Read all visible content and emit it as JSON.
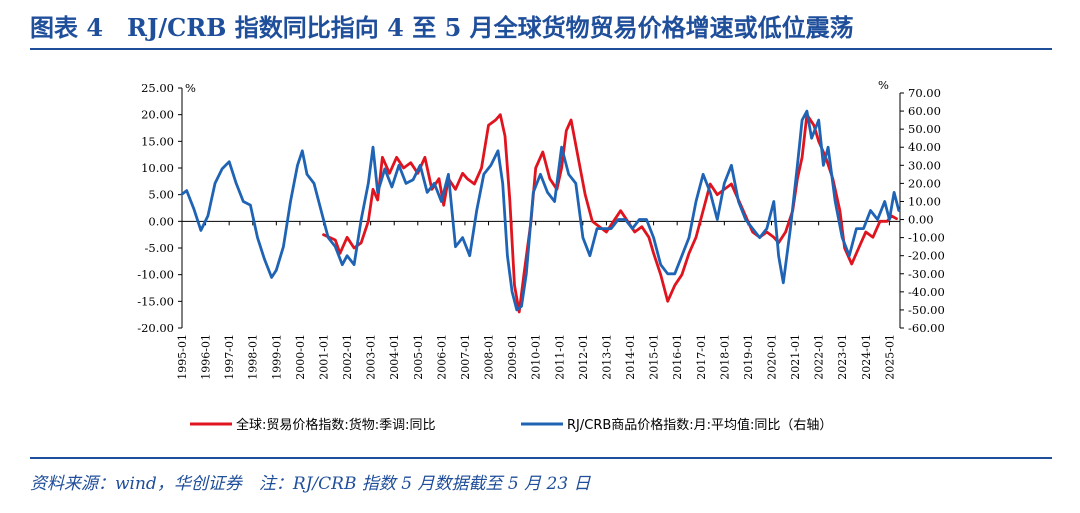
{
  "header": {
    "title": "图表 4　RJ/CRB 指数同比指向 4 至 5 月全球货物贸易价格增速或低位震荡"
  },
  "footer": {
    "source": "资料来源：wind，华创证券　注：RJ/CRB 指数 5 月数据截至 5 月 23 日"
  },
  "colors": {
    "series1": "#e0141e",
    "series2": "#1f64b4",
    "brand": "#1f4e9a"
  },
  "chart_data": {
    "type": "line",
    "left_axis": {
      "unit": "%",
      "ylim": [
        -20,
        25
      ],
      "ticks": [
        "25.00",
        "20.00",
        "15.00",
        "10.00",
        "5.00",
        "0.00",
        "-5.00",
        "-10.00",
        "-15.00",
        "-20.00"
      ]
    },
    "right_axis": {
      "unit": "%",
      "ylim": [
        -60,
        70
      ],
      "ticks": [
        "70.00",
        "60.00",
        "50.00",
        "40.00",
        "30.00",
        "20.00",
        "10.00",
        "0.00",
        "-10.00",
        "-20.00",
        "-30.00",
        "-40.00",
        "-50.00",
        "-60.00"
      ]
    },
    "x_ticks": [
      "1995-01",
      "1996-01",
      "1997-01",
      "1998-01",
      "1999-01",
      "2000-01",
      "2001-01",
      "2002-01",
      "2003-01",
      "2004-01",
      "2005-01",
      "2006-01",
      "2007-01",
      "2008-01",
      "2009-01",
      "2010-01",
      "2011-01",
      "2012-01",
      "2013-01",
      "2014-01",
      "2015-01",
      "2016-01",
      "2017-01",
      "2018-01",
      "2019-01",
      "2020-01",
      "2021-01",
      "2022-01",
      "2023-01",
      "2024-01",
      "2025-01"
    ],
    "grid": false,
    "legend_position": "bottom",
    "series": [
      {
        "name": "全球:贸易价格指数:货物:季调:同比",
        "axis": "left",
        "color": "#e0141e",
        "x": [
          2001.0,
          2001.5,
          2001.7,
          2002.0,
          2002.3,
          2002.6,
          2002.9,
          2003.1,
          2003.3,
          2003.5,
          2003.8,
          2004.1,
          2004.4,
          2004.7,
          2005.0,
          2005.3,
          2005.6,
          2005.9,
          2006.1,
          2006.3,
          2006.6,
          2006.9,
          2007.1,
          2007.4,
          2007.7,
          2008.0,
          2008.3,
          2008.5,
          2008.7,
          2008.9,
          2009.1,
          2009.3,
          2009.5,
          2009.8,
          2010.0,
          2010.3,
          2010.6,
          2010.9,
          2011.1,
          2011.3,
          2011.5,
          2011.8,
          2012.1,
          2012.4,
          2012.7,
          2013.0,
          2013.3,
          2013.6,
          2013.9,
          2014.2,
          2014.5,
          2014.8,
          2015.0,
          2015.3,
          2015.6,
          2015.9,
          2016.2,
          2016.5,
          2016.8,
          2017.1,
          2017.4,
          2017.7,
          2018.0,
          2018.3,
          2018.6,
          2018.9,
          2019.2,
          2019.5,
          2019.8,
          2020.1,
          2020.3,
          2020.6,
          2020.9,
          2021.1,
          2021.3,
          2021.5,
          2021.8,
          2022.0,
          2022.3,
          2022.6,
          2022.9,
          2023.1,
          2023.4,
          2023.7,
          2024.0,
          2024.3,
          2024.6,
          2024.9,
          2025.1,
          2025.3
        ],
        "y": [
          -2.5,
          -3.5,
          -6,
          -3,
          -5,
          -4,
          0,
          6,
          4,
          12,
          9,
          12,
          10,
          11,
          9,
          12,
          6,
          8,
          3,
          8,
          6,
          9,
          8,
          7,
          10,
          18,
          19,
          20,
          16,
          4,
          -12,
          -17,
          -10,
          0,
          10,
          13,
          8,
          6,
          10,
          17,
          19,
          12,
          5,
          0,
          -1,
          -2,
          0,
          2,
          0,
          -2,
          -1,
          -3,
          -6,
          -10,
          -15,
          -12,
          -10,
          -6,
          -3,
          2,
          7,
          5,
          6,
          7,
          4,
          1,
          -2,
          -3,
          -2,
          -3,
          -4,
          -2,
          2,
          8,
          12,
          20,
          18,
          15,
          12,
          8,
          2,
          -5,
          -8,
          -5,
          -2,
          -3,
          0,
          0,
          1,
          0.5
        ]
      },
      {
        "name": "RJ/CRB商品价格指数:月:平均值:同比（右轴）",
        "axis": "right",
        "color": "#1f64b4",
        "x": [
          1995.0,
          1995.2,
          1995.5,
          1995.8,
          1996.1,
          1996.4,
          1996.7,
          1997.0,
          1997.3,
          1997.6,
          1997.9,
          1998.2,
          1998.5,
          1998.8,
          1999.0,
          1999.3,
          1999.6,
          1999.9,
          2000.1,
          2000.3,
          2000.6,
          2000.9,
          2001.2,
          2001.5,
          2001.8,
          2002.0,
          2002.3,
          2002.6,
          2002.9,
          2003.1,
          2003.3,
          2003.6,
          2003.9,
          2004.2,
          2004.5,
          2004.8,
          2005.1,
          2005.4,
          2005.7,
          2006.0,
          2006.3,
          2006.6,
          2006.9,
          2007.2,
          2007.5,
          2007.8,
          2008.1,
          2008.4,
          2008.6,
          2008.8,
          2009.0,
          2009.2,
          2009.4,
          2009.6,
          2009.9,
          2010.2,
          2010.5,
          2010.8,
          2011.1,
          2011.4,
          2011.7,
          2012.0,
          2012.3,
          2012.6,
          2012.9,
          2013.2,
          2013.5,
          2013.8,
          2014.1,
          2014.4,
          2014.7,
          2015.0,
          2015.3,
          2015.6,
          2015.9,
          2016.2,
          2016.5,
          2016.8,
          2017.1,
          2017.4,
          2017.7,
          2018.0,
          2018.3,
          2018.6,
          2018.9,
          2019.2,
          2019.5,
          2019.8,
          2020.1,
          2020.3,
          2020.5,
          2020.8,
          2021.1,
          2021.3,
          2021.5,
          2021.7,
          2022.0,
          2022.2,
          2022.4,
          2022.7,
          2023.0,
          2023.3,
          2023.6,
          2023.9,
          2024.2,
          2024.5,
          2024.8,
          2025.0,
          2025.2,
          2025.4
        ],
        "y": [
          14,
          16,
          6,
          -6,
          2,
          20,
          28,
          32,
          20,
          10,
          8,
          -10,
          -22,
          -32,
          -28,
          -15,
          10,
          30,
          38,
          25,
          20,
          5,
          -10,
          -15,
          -25,
          -20,
          -25,
          0,
          20,
          40,
          15,
          28,
          18,
          30,
          20,
          22,
          30,
          15,
          20,
          10,
          25,
          -15,
          -10,
          -20,
          5,
          25,
          30,
          38,
          20,
          -20,
          -40,
          -50,
          -48,
          -30,
          15,
          25,
          15,
          10,
          40,
          25,
          20,
          -10,
          -20,
          -5,
          -5,
          -5,
          0,
          0,
          -5,
          0,
          0,
          -10,
          -25,
          -30,
          -30,
          -20,
          -10,
          10,
          25,
          15,
          0,
          20,
          30,
          10,
          0,
          -5,
          -10,
          -5,
          10,
          -20,
          -35,
          -5,
          30,
          55,
          60,
          45,
          55,
          30,
          40,
          10,
          -10,
          -20,
          -5,
          -5,
          5,
          0,
          10,
          0,
          15,
          5
        ]
      }
    ]
  }
}
